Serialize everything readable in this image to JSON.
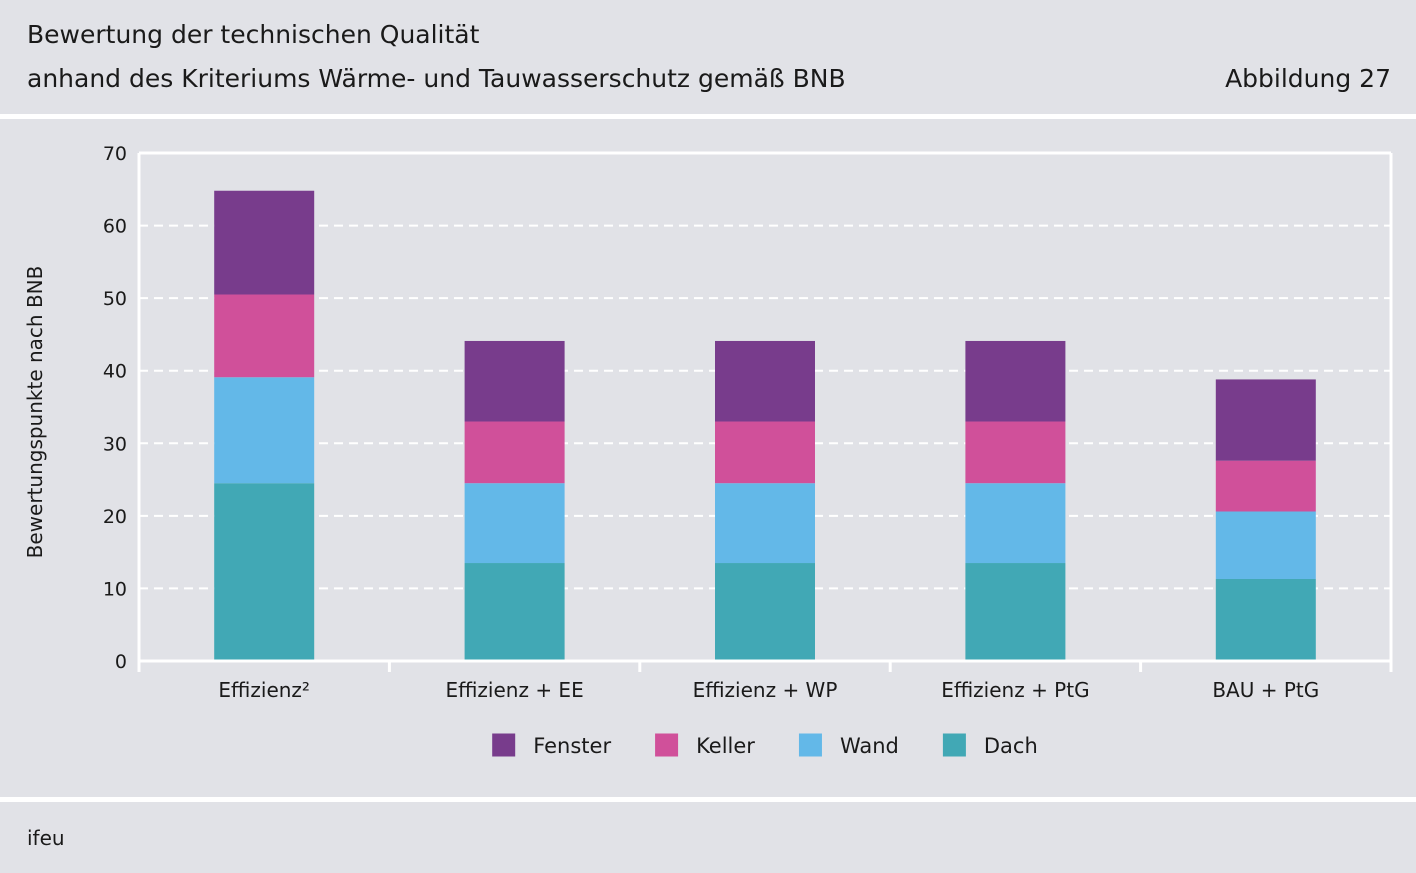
{
  "header": {
    "title_line1": "Bewertung der technischen Qualität",
    "title_line2": "anhand des Kriteriums Wärme- und Tauwasserschutz gemäß BNB",
    "figure_label": "Abbildung 27"
  },
  "footer": {
    "source": "ifeu"
  },
  "chart_data": {
    "type": "bar",
    "stacked": true,
    "title": "Bewertung der technischen Qualität anhand des Kriteriums Wärme- und Tauwasserschutz gemäß BNB",
    "xlabel": "",
    "ylabel": "Bewertungspunkte nach BNB",
    "ylim": [
      0,
      70
    ],
    "yticks": [
      0,
      10,
      20,
      30,
      40,
      50,
      60,
      70
    ],
    "grid": true,
    "categories": [
      "Effizienz²",
      "Effizienz + EE",
      "Effizienz + WP",
      "Effizienz + PtG",
      "BAU + PtG"
    ],
    "series": [
      {
        "name": "Dach",
        "color": "#41a8b5",
        "values": [
          24.5,
          13.5,
          13.5,
          13.5,
          11.3
        ]
      },
      {
        "name": "Wand",
        "color": "#63b8e8",
        "values": [
          14.6,
          11.0,
          11.0,
          11.0,
          9.3
        ]
      },
      {
        "name": "Keller",
        "color": "#d0509a",
        "values": [
          11.4,
          8.5,
          8.5,
          8.5,
          7.0
        ]
      },
      {
        "name": "Fenster",
        "color": "#783c8c",
        "values": [
          14.3,
          11.1,
          11.1,
          11.1,
          11.2
        ]
      }
    ],
    "legend": {
      "placement": "bottom-center",
      "order": [
        "Fenster",
        "Keller",
        "Wand",
        "Dach"
      ]
    }
  }
}
